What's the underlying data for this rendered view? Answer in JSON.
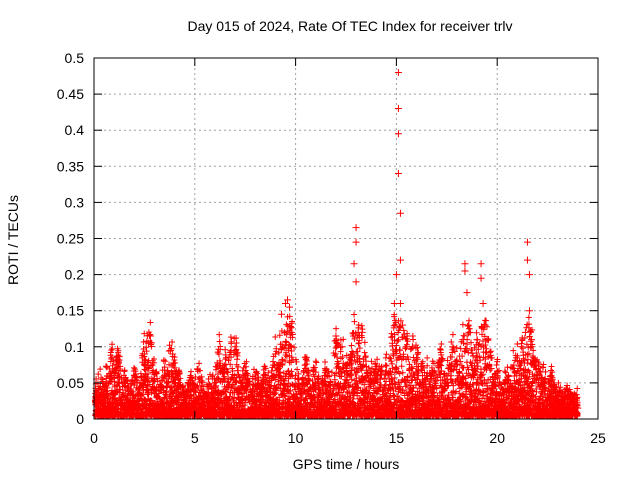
{
  "chart_data": {
    "type": "scatter",
    "title": "Day 015 of 2024, Rate Of TEC Index for receiver trlv",
    "xlabel": "GPS time / hours",
    "ylabel": "ROTI / TECUs",
    "xlim": [
      0,
      25
    ],
    "ylim": [
      0,
      0.5
    ],
    "xticks": [
      "0",
      "5",
      "10",
      "15",
      "20",
      "25"
    ],
    "yticks": [
      "0",
      "0.05",
      "0.1",
      "0.15",
      "0.2",
      "0.25",
      "0.3",
      "0.35",
      "0.4",
      "0.45",
      "0.5"
    ],
    "grid": true,
    "marker": "+",
    "series_color": "#ff0000",
    "series": [
      {
        "name": "ROTI",
        "x": [
          0.1,
          0.3,
          0.6,
          0.9,
          1.0,
          1.2,
          1.5,
          2.0,
          2.5,
          2.7,
          2.8,
          3.0,
          3.5,
          3.8,
          3.9,
          4.2,
          4.8,
          5.2,
          5.8,
          6.2,
          6.5,
          6.8,
          7.0,
          7.5,
          8.0,
          8.5,
          9.0,
          9.3,
          9.5,
          9.6,
          9.7,
          9.8,
          10.0,
          10.5,
          11.0,
          11.5,
          12.0,
          12.3,
          12.5,
          12.7,
          12.9,
          13.0,
          13.0,
          13.0,
          13.1,
          13.3,
          13.7,
          14.0,
          14.2,
          14.5,
          14.8,
          14.9,
          15.0,
          15.1,
          15.1,
          15.1,
          15.1,
          15.2,
          15.2,
          15.2,
          15.3,
          15.5,
          15.8,
          16.0,
          16.3,
          16.5,
          16.8,
          17.2,
          17.5,
          17.8,
          18.0,
          18.3,
          18.4,
          18.4,
          18.5,
          18.6,
          18.8,
          19.0,
          19.2,
          19.2,
          19.3,
          19.4,
          19.5,
          19.7,
          20.0,
          20.5,
          20.8,
          21.0,
          21.2,
          21.4,
          21.5,
          21.5,
          21.6,
          21.6,
          21.7,
          21.8,
          22.0,
          22.3,
          22.7,
          23.0,
          23.5,
          24.0
        ],
        "y": [
          0.03,
          0.045,
          0.05,
          0.085,
          0.06,
          0.08,
          0.045,
          0.05,
          0.09,
          0.105,
          0.115,
          0.055,
          0.06,
          0.095,
          0.09,
          0.045,
          0.04,
          0.055,
          0.045,
          0.09,
          0.07,
          0.095,
          0.1,
          0.06,
          0.055,
          0.06,
          0.09,
          0.145,
          0.16,
          0.165,
          0.155,
          0.12,
          0.06,
          0.07,
          0.065,
          0.06,
          0.115,
          0.1,
          0.07,
          0.075,
          0.215,
          0.245,
          0.265,
          0.19,
          0.12,
          0.12,
          0.065,
          0.06,
          0.055,
          0.065,
          0.105,
          0.16,
          0.2,
          0.48,
          0.43,
          0.395,
          0.34,
          0.285,
          0.22,
          0.16,
          0.13,
          0.1,
          0.1,
          0.085,
          0.06,
          0.06,
          0.065,
          0.08,
          0.06,
          0.1,
          0.075,
          0.11,
          0.215,
          0.205,
          0.175,
          0.12,
          0.06,
          0.11,
          0.215,
          0.195,
          0.16,
          0.13,
          0.11,
          0.07,
          0.06,
          0.055,
          0.07,
          0.08,
          0.1,
          0.12,
          0.245,
          0.22,
          0.2,
          0.15,
          0.11,
          0.08,
          0.06,
          0.05,
          0.045,
          0.025,
          0.02,
          0.015
        ]
      }
    ]
  }
}
